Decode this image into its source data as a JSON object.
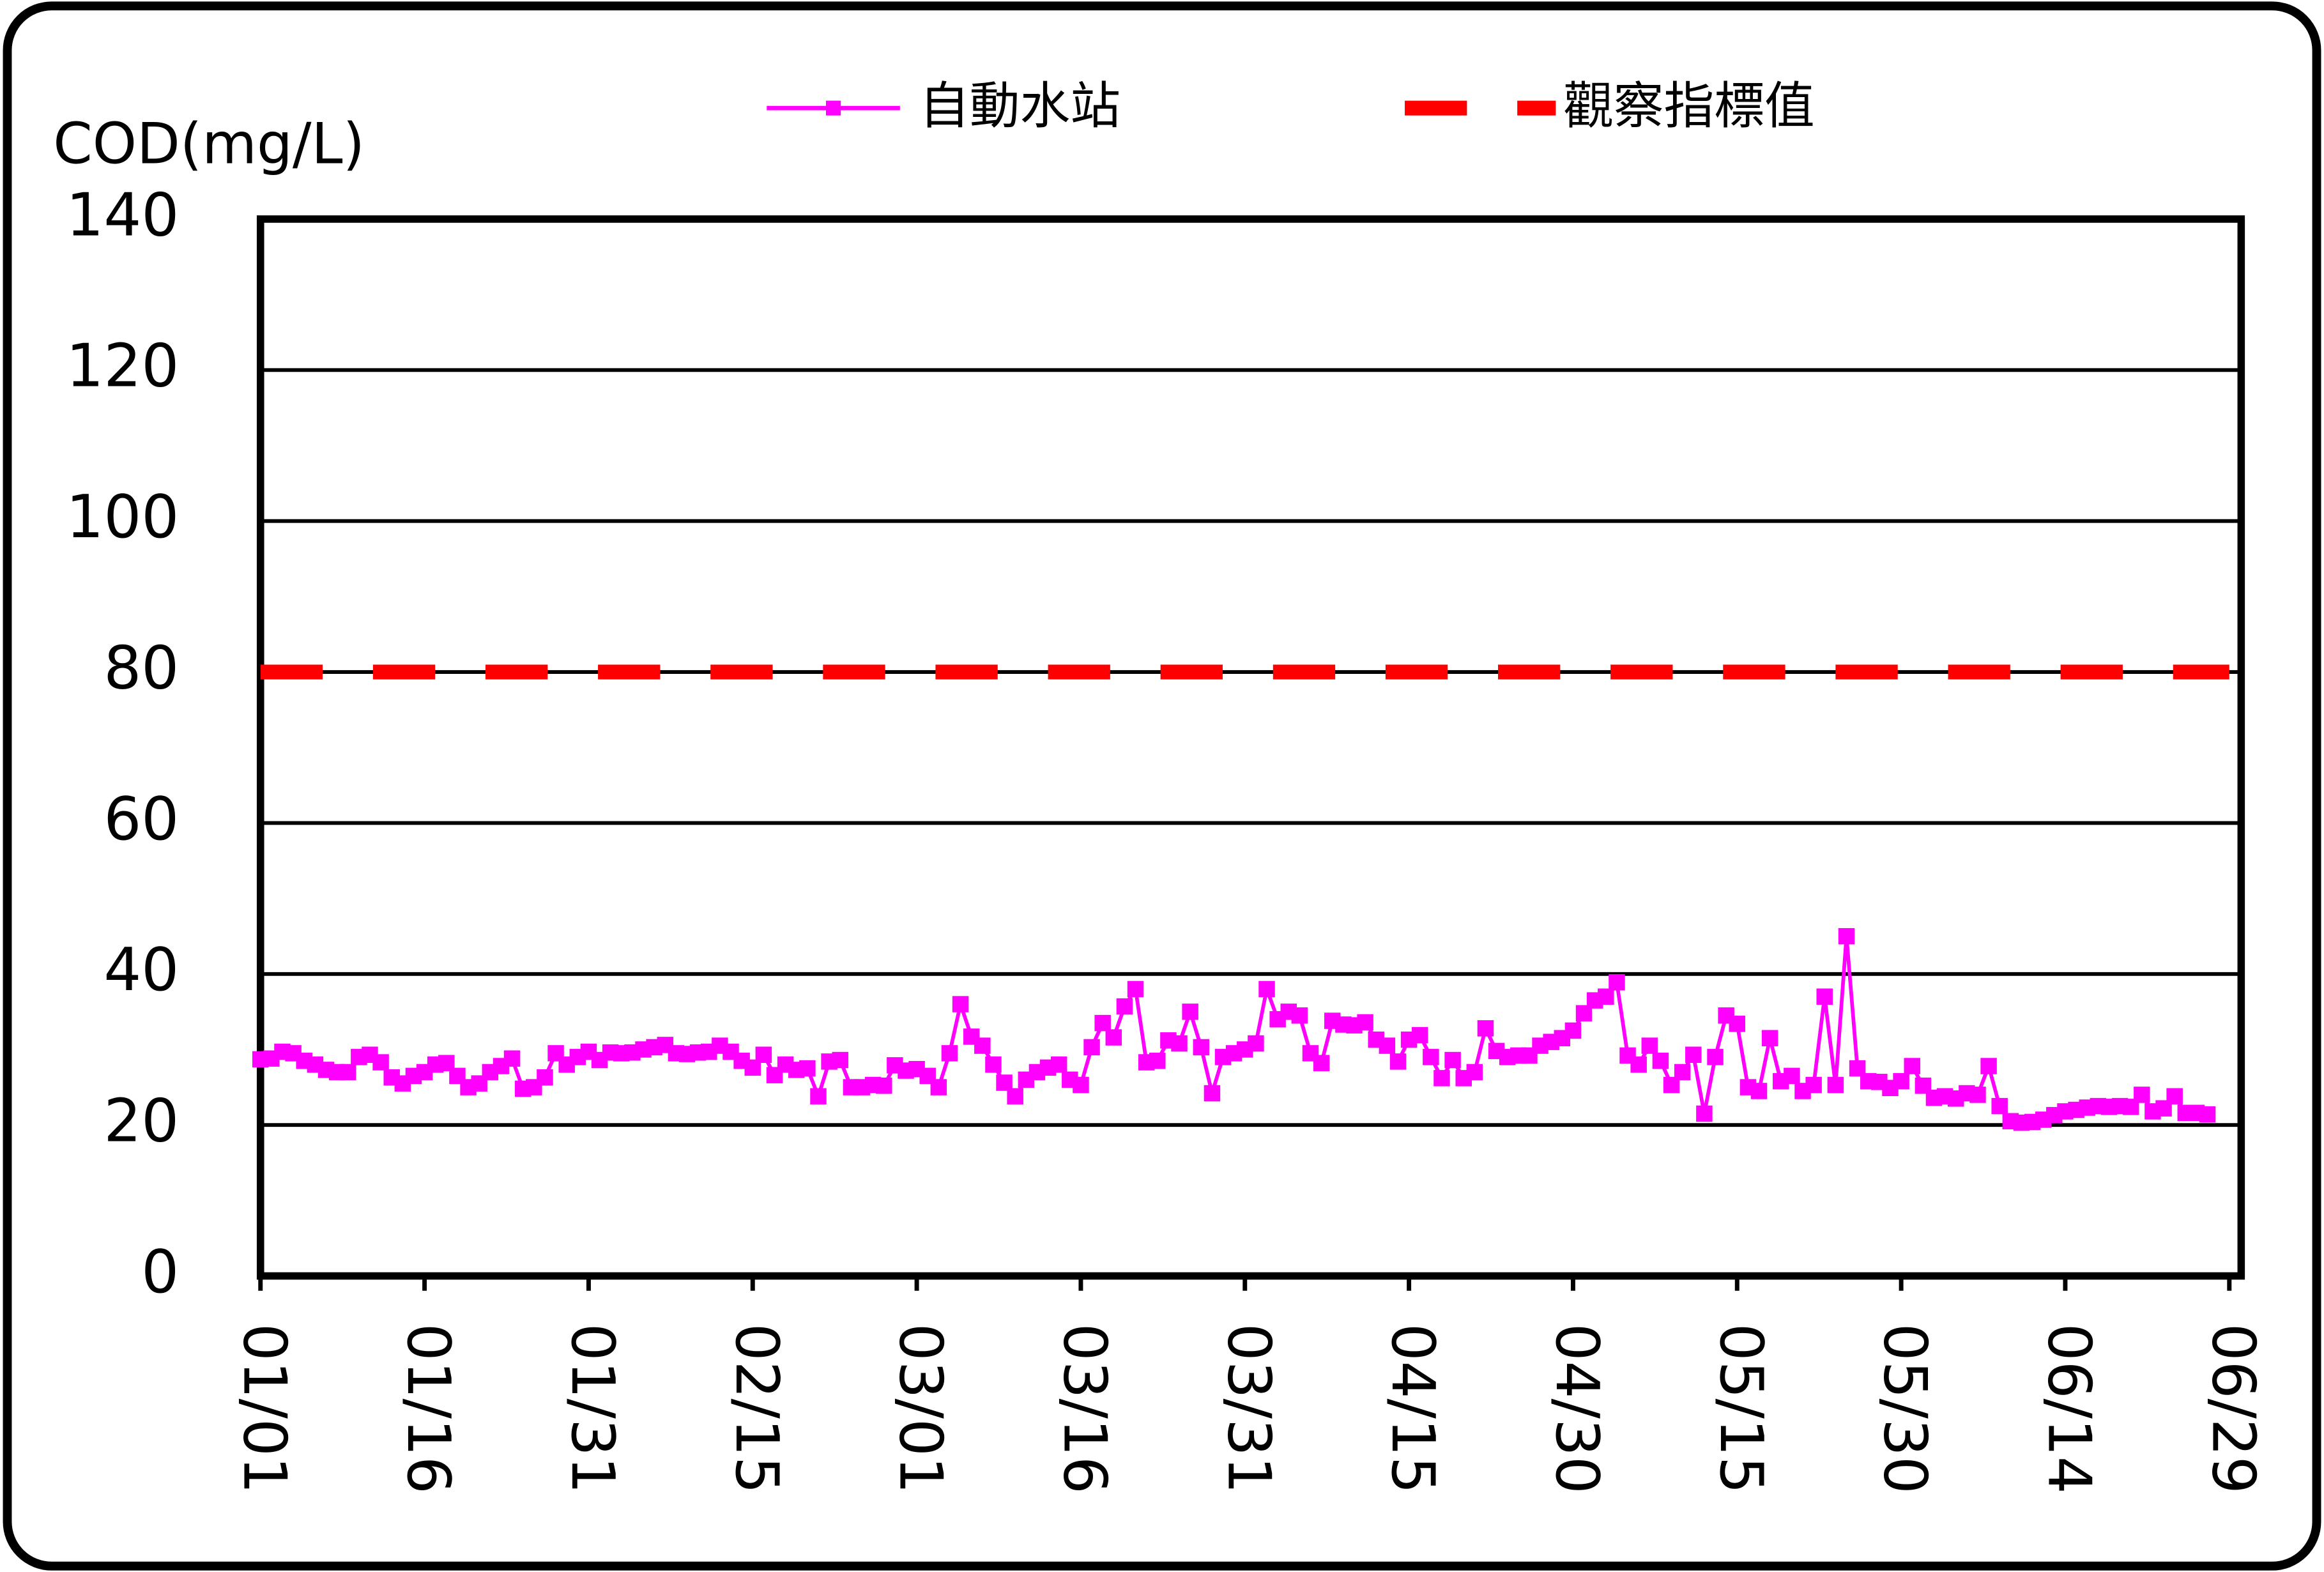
{
  "chart_data": {
    "type": "line",
    "y_label": "COD(mg/L)",
    "categories": [
      "01/01",
      null,
      null,
      null,
      null,
      null,
      null,
      null,
      null,
      null,
      null,
      null,
      null,
      null,
      null,
      "01/16",
      null,
      null,
      null,
      null,
      null,
      null,
      null,
      null,
      null,
      null,
      null,
      null,
      null,
      null,
      "01/31",
      null,
      null,
      null,
      null,
      null,
      null,
      null,
      null,
      null,
      null,
      null,
      null,
      null,
      null,
      "02/15",
      null,
      null,
      null,
      null,
      null,
      null,
      null,
      null,
      null,
      null,
      null,
      null,
      null,
      null,
      "03/01",
      null,
      null,
      null,
      null,
      null,
      null,
      null,
      null,
      null,
      null,
      null,
      null,
      null,
      null,
      "03/16",
      null,
      null,
      null,
      null,
      null,
      null,
      null,
      null,
      null,
      null,
      null,
      null,
      null,
      null,
      "03/31",
      null,
      null,
      null,
      null,
      null,
      null,
      null,
      null,
      null,
      null,
      null,
      null,
      null,
      null,
      "04/15",
      null,
      null,
      null,
      null,
      null,
      null,
      null,
      null,
      null,
      null,
      null,
      null,
      null,
      null,
      "04/30",
      null,
      null,
      null,
      null,
      null,
      null,
      null,
      null,
      null,
      null,
      null,
      null,
      null,
      null,
      "05/15",
      null,
      null,
      null,
      null,
      null,
      null,
      null,
      null,
      null,
      null,
      null,
      null,
      null,
      null,
      "05/30",
      null,
      null,
      null,
      null,
      null,
      null,
      null,
      null,
      null,
      null,
      null,
      null,
      null,
      null,
      "06/14",
      null,
      null,
      null,
      null,
      null,
      null,
      null,
      null,
      null,
      null,
      null,
      null,
      null,
      null,
      "06/29"
    ],
    "series": [
      {
        "name": "自動水站",
        "color": "#ff00ff",
        "values": [
          28.7,
          28.8,
          29.7,
          29.5,
          28.5,
          28,
          27.3,
          27,
          27,
          29,
          29.3,
          28.3,
          26.3,
          25.5,
          26.5,
          27,
          28,
          28.2,
          26.5,
          25,
          25.5,
          27,
          27.8,
          28.8,
          24.8,
          25,
          26.3,
          29.5,
          28,
          29,
          29.7,
          28.6,
          29.6,
          29.5,
          29.6,
          30,
          30.3,
          30.6,
          29.5,
          29.4,
          29.6,
          29.7,
          30.5,
          29.7,
          28.5,
          27.6,
          29.3,
          26.6,
          28,
          27.3,
          27.5,
          23.8,
          28.4,
          28.6,
          25,
          25,
          25.3,
          25.2,
          27.9,
          27.2,
          27.4,
          26.5,
          25,
          29.5,
          36,
          31.7,
          30.5,
          28,
          25.6,
          23.8,
          26,
          27,
          27.6,
          28,
          26,
          25.3,
          30.3,
          33.5,
          31.6,
          35.7,
          38,
          28.3,
          28.5,
          31.2,
          30.8,
          35,
          30.3,
          24.2,
          29,
          29.5,
          30,
          30.8,
          38,
          34,
          35,
          34.5,
          29.5,
          28.2,
          33.8,
          33.3,
          33.2,
          33.6,
          31.3,
          30.5,
          28.4,
          31.3,
          31.9,
          29,
          26.2,
          28.6,
          26.2,
          27,
          32.8,
          29.8,
          29,
          29.2,
          29.2,
          30.5,
          31,
          31.5,
          32.5,
          34.8,
          36.5,
          37,
          38.9,
          29.2,
          28,
          30.5,
          28.5,
          25.3,
          27,
          29.3,
          21.5,
          29,
          34.5,
          33.4,
          25,
          24.5,
          31.5,
          25.8,
          26.5,
          24.5,
          25.3,
          37,
          25.3,
          45,
          27.5,
          25.8,
          25.7,
          24.9,
          25.8,
          27.8,
          25.2,
          23.6,
          23.8,
          23.5,
          24.2,
          24,
          27.8,
          22.5,
          20.5,
          20.3,
          20.4,
          20.7,
          21.3,
          21.8,
          22,
          22.3,
          22.5,
          22.4,
          22.5,
          22.4,
          24,
          21.8,
          22.2,
          23.8,
          21.6,
          21.6,
          21.4,
          null,
          null
        ]
      }
    ],
    "reference_line": {
      "name": "觀察指標值",
      "value": 80,
      "color": "#ff0000"
    },
    "ylim": [
      0,
      140
    ],
    "yticks": [
      0,
      20,
      40,
      60,
      80,
      100,
      120,
      140
    ],
    "grid": true
  }
}
